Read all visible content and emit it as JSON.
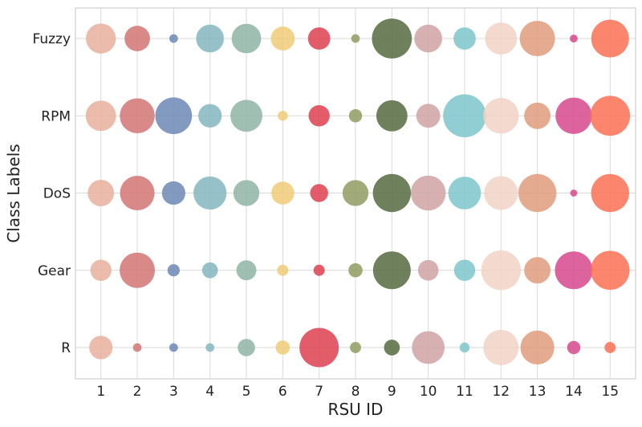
{
  "chart_data": {
    "type": "scatter",
    "subtype": "bubble",
    "title": "",
    "xlabel": "RSU ID",
    "ylabel": "Class Labels",
    "x": [
      1,
      2,
      3,
      4,
      5,
      6,
      7,
      8,
      9,
      10,
      11,
      12,
      13,
      14,
      15
    ],
    "xlim": [
      0.3,
      15.7
    ],
    "categories": [
      "R",
      "Gear",
      "DoS",
      "RPM",
      "Fuzzy"
    ],
    "grid": true,
    "legend": "none",
    "bubble_size_unit": "relative (marker area)",
    "rsu_colors": [
      "#e8b09c",
      "#d37474",
      "#6c88b4",
      "#84b6bf",
      "#8fb4a6",
      "#efcb77",
      "#dd3f4f",
      "#919c62",
      "#566b3f",
      "#d0a2a5",
      "#7ec6cb",
      "#f1d2c6",
      "#e09c7c",
      "#d6488d",
      "#fb7154"
    ],
    "series": [
      {
        "name": "R",
        "sizes": [
          0.44,
          0.06,
          0.06,
          0.06,
          0.24,
          0.16,
          1.24,
          0.1,
          0.2,
          0.86,
          0.08,
          1.0,
          0.92,
          0.14,
          0.1
        ]
      },
      {
        "name": "Gear",
        "sizes": [
          0.36,
          1.0,
          0.12,
          0.2,
          0.32,
          0.1,
          0.1,
          0.16,
          1.14,
          0.34,
          0.36,
          1.26,
          0.56,
          1.14,
          1.22
        ]
      },
      {
        "name": "DoS",
        "sizes": [
          0.56,
          0.96,
          0.44,
          0.88,
          0.54,
          0.42,
          0.26,
          0.54,
          1.16,
          0.98,
          0.86,
          0.92,
          1.16,
          0.04,
          1.16
        ]
      },
      {
        "name": "RPM",
        "sizes": [
          0.74,
          0.98,
          1.08,
          0.44,
          0.82,
          0.08,
          0.36,
          0.14,
          0.78,
          0.46,
          1.48,
          1.02,
          0.56,
          1.06,
          1.28
        ]
      },
      {
        "name": "Fuzzy",
        "sizes": [
          0.72,
          0.52,
          0.06,
          0.62,
          0.7,
          0.46,
          0.4,
          0.06,
          1.28,
          0.62,
          0.4,
          0.82,
          1.0,
          0.05,
          1.14
        ]
      }
    ]
  }
}
